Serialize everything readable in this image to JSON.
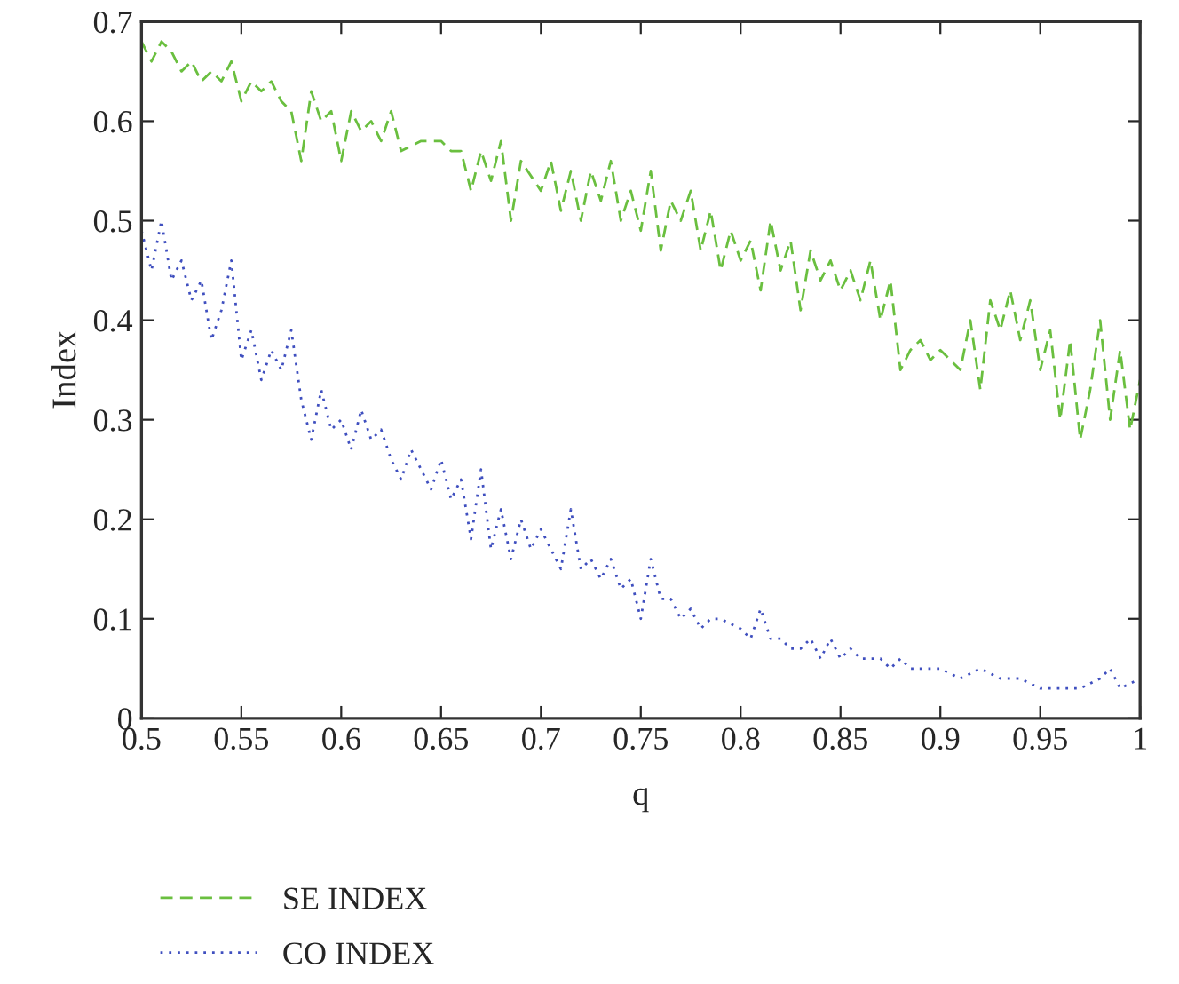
{
  "chart_data": {
    "type": "line",
    "xlabel": "q",
    "ylabel": "Index",
    "xlim": [
      0.5,
      1
    ],
    "ylim": [
      0,
      0.7
    ],
    "xticks": [
      0.5,
      0.55,
      0.6,
      0.65,
      0.7,
      0.75,
      0.8,
      0.85,
      0.9,
      0.95,
      1
    ],
    "yticks": [
      0,
      0.1,
      0.2,
      0.3,
      0.4,
      0.5,
      0.6,
      0.7
    ],
    "grid": false,
    "legend": "bottom",
    "marker": "none",
    "series": [
      {
        "name": "SE INDEX",
        "color": "#6abf3f",
        "line_style": "dashed",
        "x": [
          0.5,
          0.505,
          0.51,
          0.515,
          0.52,
          0.525,
          0.53,
          0.535,
          0.54,
          0.545,
          0.55,
          0.555,
          0.56,
          0.565,
          0.57,
          0.575,
          0.58,
          0.585,
          0.59,
          0.595,
          0.6,
          0.605,
          0.61,
          0.615,
          0.62,
          0.625,
          0.63,
          0.64,
          0.65,
          0.655,
          0.66,
          0.665,
          0.67,
          0.675,
          0.68,
          0.685,
          0.69,
          0.7,
          0.705,
          0.71,
          0.715,
          0.72,
          0.725,
          0.73,
          0.735,
          0.74,
          0.745,
          0.75,
          0.755,
          0.76,
          0.765,
          0.77,
          0.775,
          0.78,
          0.785,
          0.79,
          0.795,
          0.8,
          0.805,
          0.81,
          0.815,
          0.82,
          0.825,
          0.83,
          0.835,
          0.84,
          0.845,
          0.85,
          0.855,
          0.86,
          0.865,
          0.87,
          0.875,
          0.88,
          0.885,
          0.89,
          0.895,
          0.9,
          0.905,
          0.91,
          0.915,
          0.92,
          0.925,
          0.93,
          0.935,
          0.94,
          0.945,
          0.95,
          0.955,
          0.96,
          0.965,
          0.97,
          0.975,
          0.98,
          0.985,
          0.99,
          0.995,
          1.0
        ],
        "values": [
          0.68,
          0.66,
          0.68,
          0.67,
          0.65,
          0.66,
          0.64,
          0.65,
          0.64,
          0.66,
          0.62,
          0.64,
          0.63,
          0.64,
          0.62,
          0.61,
          0.56,
          0.63,
          0.6,
          0.61,
          0.56,
          0.61,
          0.59,
          0.6,
          0.58,
          0.61,
          0.57,
          0.58,
          0.58,
          0.57,
          0.57,
          0.53,
          0.57,
          0.54,
          0.58,
          0.5,
          0.56,
          0.53,
          0.56,
          0.51,
          0.55,
          0.5,
          0.55,
          0.52,
          0.56,
          0.5,
          0.53,
          0.49,
          0.55,
          0.47,
          0.52,
          0.5,
          0.53,
          0.47,
          0.51,
          0.45,
          0.49,
          0.46,
          0.48,
          0.43,
          0.5,
          0.45,
          0.48,
          0.41,
          0.47,
          0.44,
          0.46,
          0.43,
          0.45,
          0.42,
          0.46,
          0.4,
          0.44,
          0.35,
          0.37,
          0.38,
          0.36,
          0.37,
          0.36,
          0.35,
          0.4,
          0.33,
          0.42,
          0.39,
          0.43,
          0.38,
          0.42,
          0.35,
          0.39,
          0.3,
          0.38,
          0.28,
          0.33,
          0.4,
          0.3,
          0.37,
          0.29,
          0.34
        ]
      },
      {
        "name": "CO INDEX",
        "color": "#3f4fbf",
        "line_style": "dotted",
        "x": [
          0.5,
          0.505,
          0.51,
          0.515,
          0.52,
          0.525,
          0.53,
          0.535,
          0.54,
          0.545,
          0.55,
          0.555,
          0.56,
          0.565,
          0.57,
          0.575,
          0.58,
          0.585,
          0.59,
          0.595,
          0.6,
          0.605,
          0.61,
          0.615,
          0.62,
          0.625,
          0.63,
          0.635,
          0.64,
          0.645,
          0.65,
          0.655,
          0.66,
          0.665,
          0.67,
          0.675,
          0.68,
          0.685,
          0.69,
          0.695,
          0.7,
          0.705,
          0.71,
          0.715,
          0.72,
          0.725,
          0.73,
          0.735,
          0.74,
          0.745,
          0.75,
          0.755,
          0.76,
          0.765,
          0.77,
          0.775,
          0.78,
          0.785,
          0.79,
          0.8,
          0.805,
          0.81,
          0.815,
          0.82,
          0.825,
          0.83,
          0.835,
          0.84,
          0.845,
          0.85,
          0.855,
          0.86,
          0.87,
          0.875,
          0.88,
          0.885,
          0.89,
          0.9,
          0.91,
          0.92,
          0.93,
          0.94,
          0.95,
          0.96,
          0.97,
          0.98,
          0.985,
          0.99,
          1.0
        ],
        "values": [
          0.49,
          0.45,
          0.5,
          0.44,
          0.46,
          0.42,
          0.44,
          0.38,
          0.41,
          0.46,
          0.36,
          0.39,
          0.34,
          0.37,
          0.35,
          0.39,
          0.32,
          0.28,
          0.33,
          0.29,
          0.3,
          0.27,
          0.31,
          0.28,
          0.29,
          0.26,
          0.24,
          0.27,
          0.25,
          0.23,
          0.26,
          0.22,
          0.24,
          0.18,
          0.25,
          0.17,
          0.21,
          0.16,
          0.2,
          0.17,
          0.19,
          0.17,
          0.15,
          0.21,
          0.15,
          0.16,
          0.14,
          0.16,
          0.13,
          0.14,
          0.1,
          0.16,
          0.12,
          0.12,
          0.1,
          0.11,
          0.09,
          0.1,
          0.1,
          0.09,
          0.08,
          0.11,
          0.08,
          0.08,
          0.07,
          0.07,
          0.08,
          0.06,
          0.08,
          0.06,
          0.07,
          0.06,
          0.06,
          0.05,
          0.06,
          0.05,
          0.05,
          0.05,
          0.04,
          0.05,
          0.04,
          0.04,
          0.03,
          0.03,
          0.03,
          0.04,
          0.05,
          0.03,
          0.04
        ]
      }
    ]
  }
}
